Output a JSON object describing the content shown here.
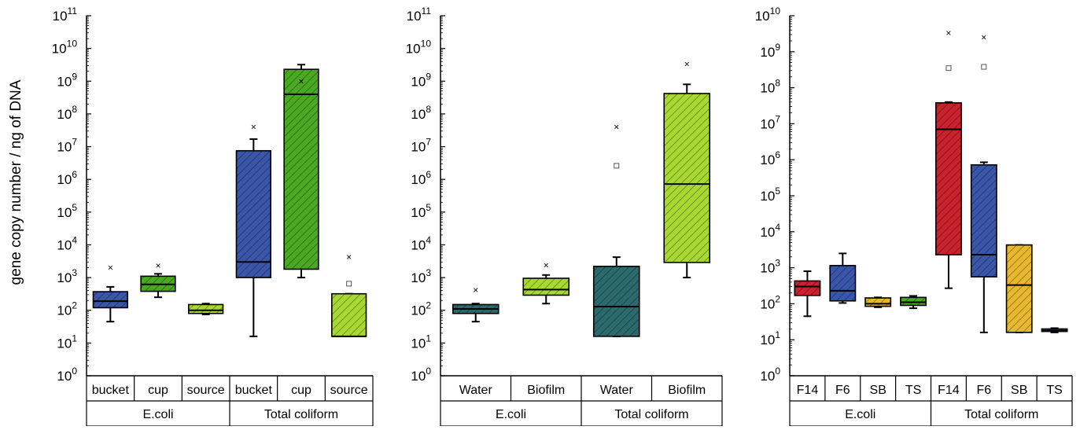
{
  "y_axis_label": "gene copy number / ng of DNA",
  "colors": {
    "blue": "#3a56a8",
    "green": "#4aa822",
    "lime": "#a8d832",
    "teal": "#2b6a6c",
    "red": "#c8222c",
    "yellow": "#e8b830"
  },
  "chart_data": [
    {
      "type": "box",
      "yscale": "log",
      "ylim": [
        1,
        100000000000
      ],
      "yticks": [
        "10^0",
        "10^1",
        "10^2",
        "10^3",
        "10^4",
        "10^5",
        "10^6",
        "10^7",
        "10^8",
        "10^9",
        "10^10",
        "10^11"
      ],
      "ylabel": "gene copy number / ng of DNA",
      "groups": [
        {
          "label": "E.coli",
          "categories": [
            "bucket",
            "cup",
            "source"
          ]
        },
        {
          "label": "Total coliform",
          "categories": [
            "bucket",
            "cup",
            "source"
          ]
        }
      ],
      "series": [
        {
          "category": "bucket",
          "group": "E.coli",
          "color": "blue",
          "whisker_low": 45,
          "q1": 120,
          "median": 190,
          "q3": 370,
          "whisker_high": 520,
          "outliers": {
            "max_x": 2000
          }
        },
        {
          "category": "cup",
          "group": "E.coli",
          "color": "green",
          "whisker_low": 250,
          "q1": 380,
          "median": 620,
          "q3": 1100,
          "whisker_high": 1300,
          "outliers": {
            "max_x": 2300
          }
        },
        {
          "category": "source",
          "group": "E.coli",
          "color": "lime",
          "whisker_low": 75,
          "q1": 80,
          "median": 100,
          "q3": 150,
          "whisker_high": 160,
          "outliers": {}
        },
        {
          "category": "bucket",
          "group": "Total coliform",
          "color": "blue",
          "whisker_low": 16,
          "q1": 1000,
          "median": 3000,
          "q3": 7500000,
          "whisker_high": 17000000,
          "outliers": {
            "max_x": 40000000
          }
        },
        {
          "category": "cup",
          "group": "Total coliform",
          "color": "green",
          "whisker_low": 1000,
          "q1": 1800,
          "median": 400000000,
          "q3": 2300000000,
          "whisker_high": 3200000000,
          "outliers": {
            "max_x": 1000000000
          }
        },
        {
          "category": "source",
          "group": "Total coliform",
          "color": "lime",
          "whisker_low": 16,
          "q1": 16,
          "median": 16,
          "q3": 320,
          "whisker_high": 320,
          "outliers": {
            "max_x": 4200,
            "mean_sq": 650
          }
        }
      ]
    },
    {
      "type": "box",
      "yscale": "log",
      "ylim": [
        1,
        100000000000
      ],
      "yticks": [
        "10^0",
        "10^1",
        "10^2",
        "10^3",
        "10^4",
        "10^5",
        "10^6",
        "10^7",
        "10^8",
        "10^9",
        "10^10",
        "10^11"
      ],
      "groups": [
        {
          "label": "E.coli",
          "categories": [
            "Water",
            "Biofilm"
          ]
        },
        {
          "label": "Total coliform",
          "categories": [
            "Water",
            "Biofilm"
          ]
        }
      ],
      "series": [
        {
          "category": "Water",
          "group": "E.coli",
          "color": "teal",
          "whisker_low": 45,
          "q1": 80,
          "median": 110,
          "q3": 150,
          "whisker_high": 160,
          "outliers": {
            "max_x": 420
          }
        },
        {
          "category": "Biofilm",
          "group": "E.coli",
          "color": "lime",
          "whisker_low": 160,
          "q1": 290,
          "median": 430,
          "q3": 950,
          "whisker_high": 1200,
          "outliers": {
            "max_x": 2400
          }
        },
        {
          "category": "Water",
          "group": "Total coliform",
          "color": "teal",
          "whisker_low": 16,
          "q1": 16,
          "median": 130,
          "q3": 2200,
          "whisker_high": 4200,
          "outliers": {
            "max_x": 40000000,
            "mean_sq": 2600000
          }
        },
        {
          "category": "Biofilm",
          "group": "Total coliform",
          "color": "lime",
          "whisker_low": 1000,
          "q1": 2900,
          "median": 720000,
          "q3": 420000000,
          "whisker_high": 800000000,
          "outliers": {
            "max_x": 3300000000
          }
        }
      ]
    },
    {
      "type": "box",
      "yscale": "log",
      "ylim": [
        1,
        10000000000
      ],
      "yticks": [
        "10^0",
        "10^1",
        "10^2",
        "10^3",
        "10^4",
        "10^5",
        "10^6",
        "10^7",
        "10^8",
        "10^9",
        "10^10"
      ],
      "groups": [
        {
          "label": "E.coli",
          "categories": [
            "F14",
            "F6",
            "SB",
            "TS"
          ]
        },
        {
          "label": "Total coliform",
          "categories": [
            "F14",
            "F6",
            "SB",
            "TS"
          ]
        }
      ],
      "series": [
        {
          "category": "F14",
          "group": "E.coli",
          "color": "red",
          "whisker_low": 45,
          "q1": 170,
          "median": 300,
          "q3": 430,
          "whisker_high": 800,
          "outliers": {}
        },
        {
          "category": "F6",
          "group": "E.coli",
          "color": "blue",
          "whisker_low": 105,
          "q1": 120,
          "median": 230,
          "q3": 1150,
          "whisker_high": 2500,
          "outliers": {}
        },
        {
          "category": "SB",
          "group": "E.coli",
          "color": "yellow",
          "whisker_low": 80,
          "q1": 85,
          "median": 100,
          "q3": 145,
          "whisker_high": 150,
          "outliers": {}
        },
        {
          "category": "TS",
          "group": "E.coli",
          "color": "green",
          "whisker_low": 75,
          "q1": 90,
          "median": 110,
          "q3": 150,
          "whisker_high": 165,
          "outliers": {}
        },
        {
          "category": "F14",
          "group": "Total coliform",
          "color": "red",
          "whisker_low": 270,
          "q1": 2300,
          "median": 7000000,
          "q3": 38000000,
          "whisker_high": 40000000,
          "outliers": {
            "max_x": 3300000000,
            "mean_sq": 350000000
          }
        },
        {
          "category": "F6",
          "group": "Total coliform",
          "color": "blue",
          "whisker_low": 16,
          "q1": 560,
          "median": 2300,
          "q3": 720000,
          "whisker_high": 850000,
          "outliers": {
            "max_x": 2500000000,
            "mean_sq": 380000000
          }
        },
        {
          "category": "SB",
          "group": "Total coliform",
          "color": "yellow",
          "whisker_low": 16,
          "q1": 16,
          "median": 330,
          "q3": 4300,
          "whisker_high": 4300,
          "outliers": {}
        },
        {
          "category": "TS",
          "group": "Total coliform",
          "color": "green",
          "whisker_low": 16,
          "q1": 17,
          "median": 18,
          "q3": 20,
          "whisker_high": 21,
          "outliers": {}
        }
      ]
    }
  ]
}
